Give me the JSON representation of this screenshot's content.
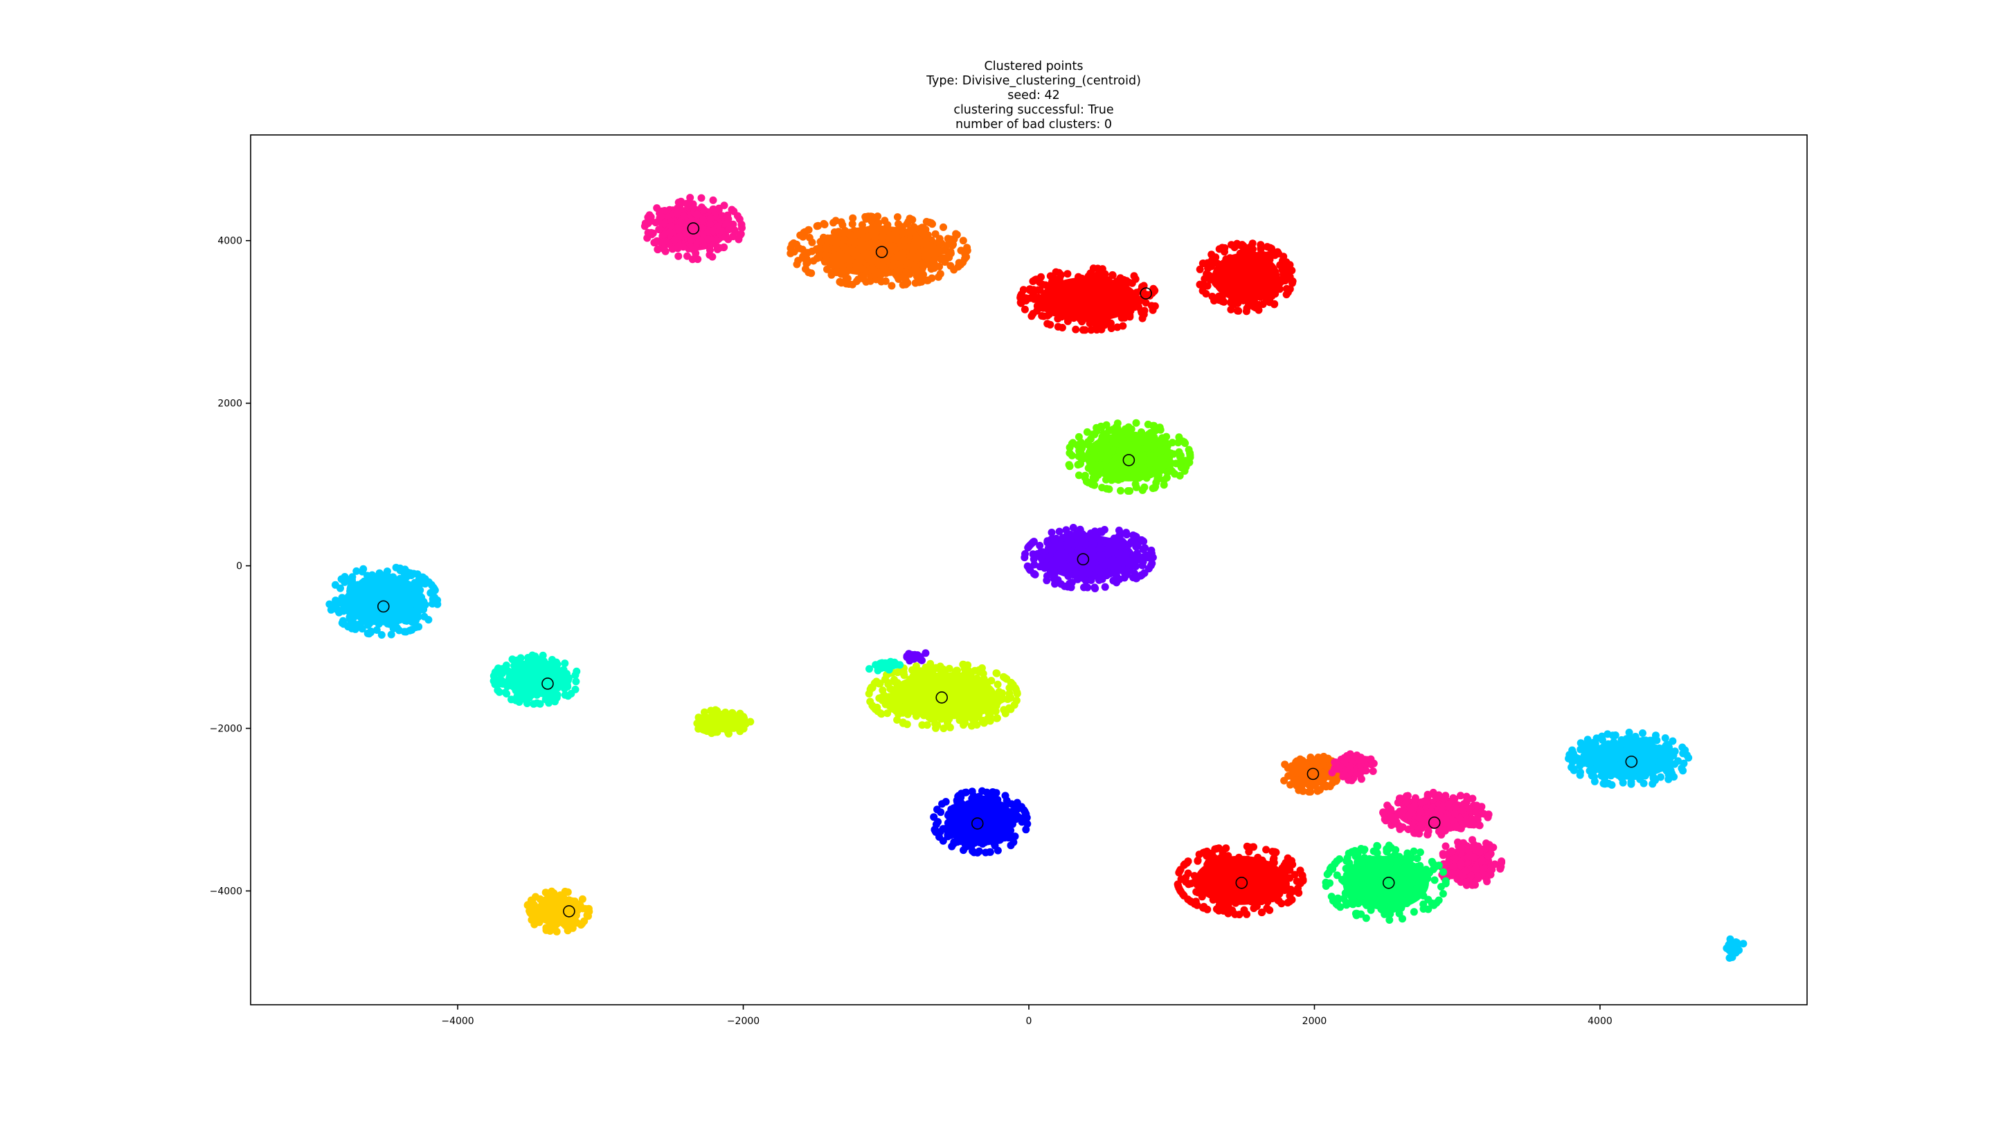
{
  "chart_data": {
    "type": "scatter",
    "title_lines": [
      "Clustered points",
      "Type: Divisive_clustering_(centroid)",
      "seed: 42",
      "clustering successful: True",
      "number of bad clusters: 0"
    ],
    "xlabel": "",
    "ylabel": "",
    "xlim": [
      -5450,
      5450
    ],
    "ylim": [
      -5400,
      5300
    ],
    "xticks": [
      -4000,
      -2000,
      0,
      2000,
      4000
    ],
    "yticks": [
      -4000,
      -2000,
      0,
      2000,
      4000
    ],
    "xtick_labels": [
      "−4000",
      "−2000",
      "0",
      "2000",
      "4000"
    ],
    "ytick_labels": [
      "−4000",
      "−2000",
      "0",
      "2000",
      "4000"
    ],
    "grid": false,
    "legend": "none",
    "blobs": [
      {
        "color": "#ff1493",
        "cx": -2350,
        "cy": 4150,
        "rx": 340,
        "ry": 380,
        "n": 420
      },
      {
        "color": "#ff6a00",
        "cx": -1050,
        "cy": 3870,
        "rx": 620,
        "ry": 430,
        "n": 700
      },
      {
        "color": "#ff0000",
        "cx": 420,
        "cy": 3280,
        "rx": 480,
        "ry": 380,
        "n": 520
      },
      {
        "color": "#ff0000",
        "cx": 1520,
        "cy": 3550,
        "rx": 330,
        "ry": 420,
        "n": 420
      },
      {
        "color": "#66ff00",
        "cx": 700,
        "cy": 1340,
        "rx": 430,
        "ry": 420,
        "n": 520
      },
      {
        "color": "#6a00ff",
        "cx": 420,
        "cy": 100,
        "rx": 450,
        "ry": 380,
        "n": 520
      },
      {
        "color": "#00ccff",
        "cx": -4520,
        "cy": -430,
        "rx": 380,
        "ry": 420,
        "n": 480
      },
      {
        "color": "#00ffcc",
        "cx": -3450,
        "cy": -1400,
        "rx": 300,
        "ry": 300,
        "n": 300
      },
      {
        "color": "#ccff00",
        "cx": -2150,
        "cy": -1920,
        "rx": 200,
        "ry": 150,
        "n": 150
      },
      {
        "color": "#ccff00",
        "cx": -600,
        "cy": -1600,
        "rx": 520,
        "ry": 400,
        "n": 650
      },
      {
        "color": "#0000ff",
        "cx": -340,
        "cy": -3150,
        "rx": 330,
        "ry": 380,
        "n": 420
      },
      {
        "color": "#ffcc00",
        "cx": -3300,
        "cy": -4250,
        "rx": 220,
        "ry": 250,
        "n": 220
      },
      {
        "color": "#ff6a00",
        "cx": 1970,
        "cy": -2550,
        "rx": 200,
        "ry": 230,
        "n": 200
      },
      {
        "color": "#ff1493",
        "cx": 2260,
        "cy": -2470,
        "rx": 160,
        "ry": 170,
        "n": 90
      },
      {
        "color": "#ff1493",
        "cx": 2850,
        "cy": -3050,
        "rx": 370,
        "ry": 260,
        "n": 320
      },
      {
        "color": "#ff1493",
        "cx": 3080,
        "cy": -3650,
        "rx": 230,
        "ry": 280,
        "n": 190
      },
      {
        "color": "#ff0000",
        "cx": 1480,
        "cy": -3870,
        "rx": 440,
        "ry": 420,
        "n": 520
      },
      {
        "color": "#00ff66",
        "cx": 2500,
        "cy": -3900,
        "rx": 420,
        "ry": 460,
        "n": 460
      },
      {
        "color": "#00ccff",
        "cx": 4200,
        "cy": -2380,
        "rx": 420,
        "ry": 330,
        "n": 420
      },
      {
        "color": "#00ccff",
        "cx": 4930,
        "cy": -4700,
        "rx": 80,
        "ry": 130,
        "n": 30
      },
      {
        "color": "#00ffcc",
        "cx": -1000,
        "cy": -1230,
        "rx": 140,
        "ry": 70,
        "n": 25
      },
      {
        "color": "#6a00ff",
        "cx": -800,
        "cy": -1110,
        "rx": 90,
        "ry": 70,
        "n": 20
      }
    ],
    "centroids": [
      {
        "x": -2350,
        "y": 4150
      },
      {
        "x": -1030,
        "y": 3860
      },
      {
        "x": 820,
        "y": 3350
      },
      {
        "x": 700,
        "y": 1300
      },
      {
        "x": 380,
        "y": 80
      },
      {
        "x": -4520,
        "y": -500
      },
      {
        "x": -3370,
        "y": -1450
      },
      {
        "x": -610,
        "y": -1620
      },
      {
        "x": -360,
        "y": -3170
      },
      {
        "x": -3220,
        "y": -4250
      },
      {
        "x": 1990,
        "y": -2560
      },
      {
        "x": 2840,
        "y": -3160
      },
      {
        "x": 1490,
        "y": -3900
      },
      {
        "x": 2520,
        "y": -3900
      },
      {
        "x": 4220,
        "y": -2410
      }
    ]
  }
}
